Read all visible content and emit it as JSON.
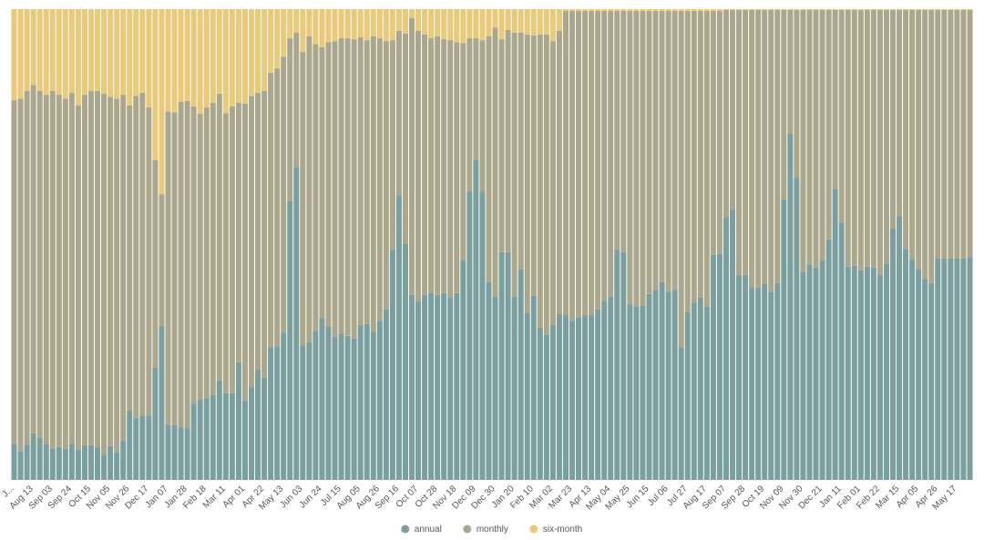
{
  "chart_data": {
    "type": "stacked-bar-100",
    "categories": [
      "J...",
      null,
      null,
      "Aug 13",
      null,
      null,
      "Sep 03",
      null,
      null,
      "Sep 24",
      null,
      null,
      "Oct 15",
      null,
      null,
      "Nov 05",
      null,
      null,
      "Nov 26",
      null,
      null,
      "Dec 17",
      null,
      null,
      "Jan 07",
      null,
      null,
      "Jan 28",
      null,
      null,
      "Feb 18",
      null,
      null,
      "Mar 11",
      null,
      null,
      "Apr 01",
      null,
      null,
      "Apr 22",
      null,
      null,
      "May 13",
      null,
      null,
      "Jun 03",
      null,
      null,
      "Jun 24",
      null,
      null,
      "Jul 15",
      null,
      null,
      "Aug 05",
      null,
      null,
      "Aug 26",
      null,
      null,
      "Sep 16",
      null,
      null,
      "Oct 07",
      null,
      null,
      "Oct 28",
      null,
      null,
      "Nov 18",
      null,
      null,
      "Dec 09",
      null,
      null,
      "Dec 30",
      null,
      null,
      "Jan 20",
      null,
      null,
      "Feb 10",
      null,
      null,
      "Mar 02",
      null,
      null,
      "Mar 23",
      null,
      null,
      "Apr 13",
      null,
      null,
      "May 04",
      null,
      null,
      "May 25",
      null,
      null,
      "Jun 15",
      null,
      null,
      "Jul 06",
      null,
      null,
      "Jul 27",
      null,
      null,
      "Aug 17",
      null,
      null,
      "Sep 07",
      null,
      null,
      "Sep 28",
      null,
      null,
      "Oct 19",
      null,
      null,
      "Nov 09",
      null,
      null,
      "Nov 30",
      null,
      null,
      "Dec 21",
      null,
      null,
      "Jan 11",
      null,
      null,
      "Feb 01",
      null,
      null,
      "Feb 22",
      null,
      null,
      "Mar 15",
      null,
      null,
      "Apr 05",
      null,
      null,
      "Apr 26",
      null,
      null,
      "May 17",
      null,
      null
    ],
    "ylim": [
      0,
      100
    ],
    "series": [
      {
        "name": "annual",
        "color": "#7b9e9e",
        "values": [
          7.7,
          6.0,
          7.5,
          9.9,
          8.9,
          7.7,
          6.6,
          7.0,
          6.6,
          7.7,
          6.4,
          7.4,
          7.4,
          7.0,
          5.4,
          7.2,
          5.8,
          8.3,
          14.7,
          13.2,
          13.7,
          13.7,
          23.8,
          32.7,
          11.6,
          11.6,
          11.2,
          11.0,
          16.2,
          17.0,
          17.4,
          18.0,
          21.1,
          18.4,
          18.4,
          25.0,
          16.8,
          19.7,
          23.4,
          21.7,
          28.2,
          28.4,
          31.3,
          59.2,
          66.5,
          28.6,
          29.2,
          31.7,
          34.4,
          32.5,
          30.4,
          31.1,
          30.6,
          30.0,
          32.9,
          33.1,
          31.5,
          33.8,
          36.2,
          48.9,
          60.5,
          50.1,
          39.3,
          37.9,
          39.3,
          39.8,
          39.3,
          39.7,
          38.7,
          39.7,
          46.6,
          61.3,
          67.9,
          61.3,
          42.0,
          38.9,
          48.4,
          48.4,
          38.9,
          44.7,
          35.4,
          39.1,
          32.3,
          30.9,
          32.9,
          35.2,
          35.0,
          33.8,
          34.6,
          35.0,
          35.0,
          36.2,
          37.9,
          38.9,
          48.9,
          48.4,
          37.3,
          36.9,
          37.1,
          39.5,
          40.4,
          42.0,
          40.0,
          40.4,
          28.2,
          35.6,
          37.7,
          38.7,
          36.9,
          47.8,
          48.0,
          55.7,
          57.4,
          43.5,
          43.5,
          40.8,
          40.8,
          41.6,
          40.0,
          41.8,
          59.6,
          73.5,
          64.2,
          44.1,
          45.8,
          45.1,
          46.6,
          51.1,
          61.7,
          54.7,
          45.3,
          45.5,
          44.5,
          45.3,
          45.1,
          43.5,
          46.0,
          53.4,
          55.9,
          49.1,
          46.8,
          44.7,
          42.7,
          41.8,
          47.0,
          47.0,
          47.0,
          47.0,
          47.0,
          47.2
        ]
      },
      {
        "name": "monthly",
        "color": "#aaa78d",
        "values": [
          73.0,
          75.0,
          75.1,
          74.0,
          73.7,
          74.1,
          76.0,
          74.8,
          74.4,
          74.5,
          73.1,
          74.4,
          75.2,
          75.6,
          76.6,
          74.2,
          75.2,
          73.5,
          64.8,
          68.4,
          68.5,
          65.4,
          44.1,
          28.0,
          66.7,
          66.5,
          69.1,
          69.5,
          63.1,
          60.8,
          61.7,
          62.1,
          60.9,
          59.5,
          60.9,
          55.1,
          63.1,
          61.9,
          58.8,
          60.9,
          58.3,
          59.0,
          58.6,
          34.6,
          28.5,
          62.3,
          65.0,
          60.9,
          57.5,
          60.5,
          62.8,
          62.7,
          63.2,
          63.6,
          61.1,
          60.3,
          62.7,
          60.0,
          57.0,
          44.5,
          34.9,
          44.7,
          58.8,
          57.5,
          55.3,
          54.0,
          54.9,
          53.9,
          54.7,
          53.3,
          46.2,
          32.5,
          25.9,
          32.1,
          52.2,
          57.2,
          45.2,
          47.2,
          56.1,
          50.3,
          59.2,
          55.3,
          62.3,
          63.7,
          60.3,
          60.2,
          64.6,
          65.8,
          65.0,
          64.6,
          64.6,
          63.4,
          61.7,
          60.7,
          50.7,
          51.2,
          62.3,
          62.7,
          62.5,
          60.1,
          59.2,
          57.6,
          59.6,
          59.2,
          71.4,
          64.0,
          61.9,
          60.9,
          62.7,
          51.8,
          51.6,
          44.1,
          42.4,
          56.3,
          56.3,
          59.0,
          59.0,
          58.2,
          59.8,
          58.0,
          40.2,
          26.3,
          35.6,
          55.7,
          54.0,
          54.7,
          53.2,
          48.7,
          38.1,
          45.1,
          54.5,
          54.3,
          55.3,
          54.5,
          54.7,
          56.3,
          53.8,
          46.4,
          43.9,
          50.7,
          53.0,
          55.1,
          57.1,
          58.0,
          52.8,
          52.8,
          52.8,
          52.8,
          52.8,
          52.6
        ]
      },
      {
        "name": "six-month",
        "color": "#e9c97a",
        "values": [
          19.3,
          19.0,
          17.4,
          16.1,
          17.4,
          18.2,
          17.4,
          18.2,
          19.0,
          17.8,
          20.5,
          18.2,
          17.4,
          17.4,
          18.0,
          18.6,
          19.0,
          18.2,
          20.5,
          18.4,
          17.8,
          20.9,
          32.1,
          39.3,
          21.7,
          21.9,
          19.7,
          19.5,
          20.7,
          22.2,
          20.9,
          19.9,
          18.0,
          22.1,
          20.7,
          19.9,
          20.1,
          18.4,
          17.8,
          17.4,
          13.5,
          12.6,
          10.1,
          6.2,
          5.0,
          9.1,
          5.8,
          7.4,
          8.1,
          7.0,
          6.8,
          6.2,
          6.2,
          6.4,
          6.0,
          6.6,
          5.8,
          6.2,
          6.8,
          6.6,
          4.6,
          5.2,
          1.9,
          4.6,
          5.4,
          6.2,
          5.8,
          6.4,
          6.6,
          7.0,
          7.2,
          6.2,
          6.2,
          6.6,
          5.8,
          3.9,
          6.4,
          4.4,
          5.0,
          5.0,
          5.4,
          5.6,
          5.4,
          5.4,
          6.8,
          4.6,
          0.4,
          0.4,
          0.4,
          0.4,
          0.4,
          0.4,
          0.4,
          0.4,
          0.4,
          0.4,
          0.4,
          0.4,
          0.4,
          0.4,
          0.4,
          0.4,
          0.4,
          0.4,
          0.4,
          0.4,
          0.4,
          0.4,
          0.4,
          0.4,
          0.4,
          0.2,
          0.2,
          0.2,
          0.2,
          0.2,
          0.2,
          0.2,
          0.2,
          0.2,
          0.2,
          0.2,
          0.2,
          0.2,
          0.2,
          0.2,
          0.2,
          0.2,
          0.2,
          0.2,
          0.2,
          0.2,
          0.2,
          0.2,
          0.2,
          0.2,
          0.2,
          0.2,
          0.2,
          0.2,
          0.2,
          0.2,
          0.2,
          0.2,
          0.2,
          0.2,
          0.2,
          0.2,
          0.2,
          0.2
        ]
      }
    ],
    "legend": "bottom"
  }
}
